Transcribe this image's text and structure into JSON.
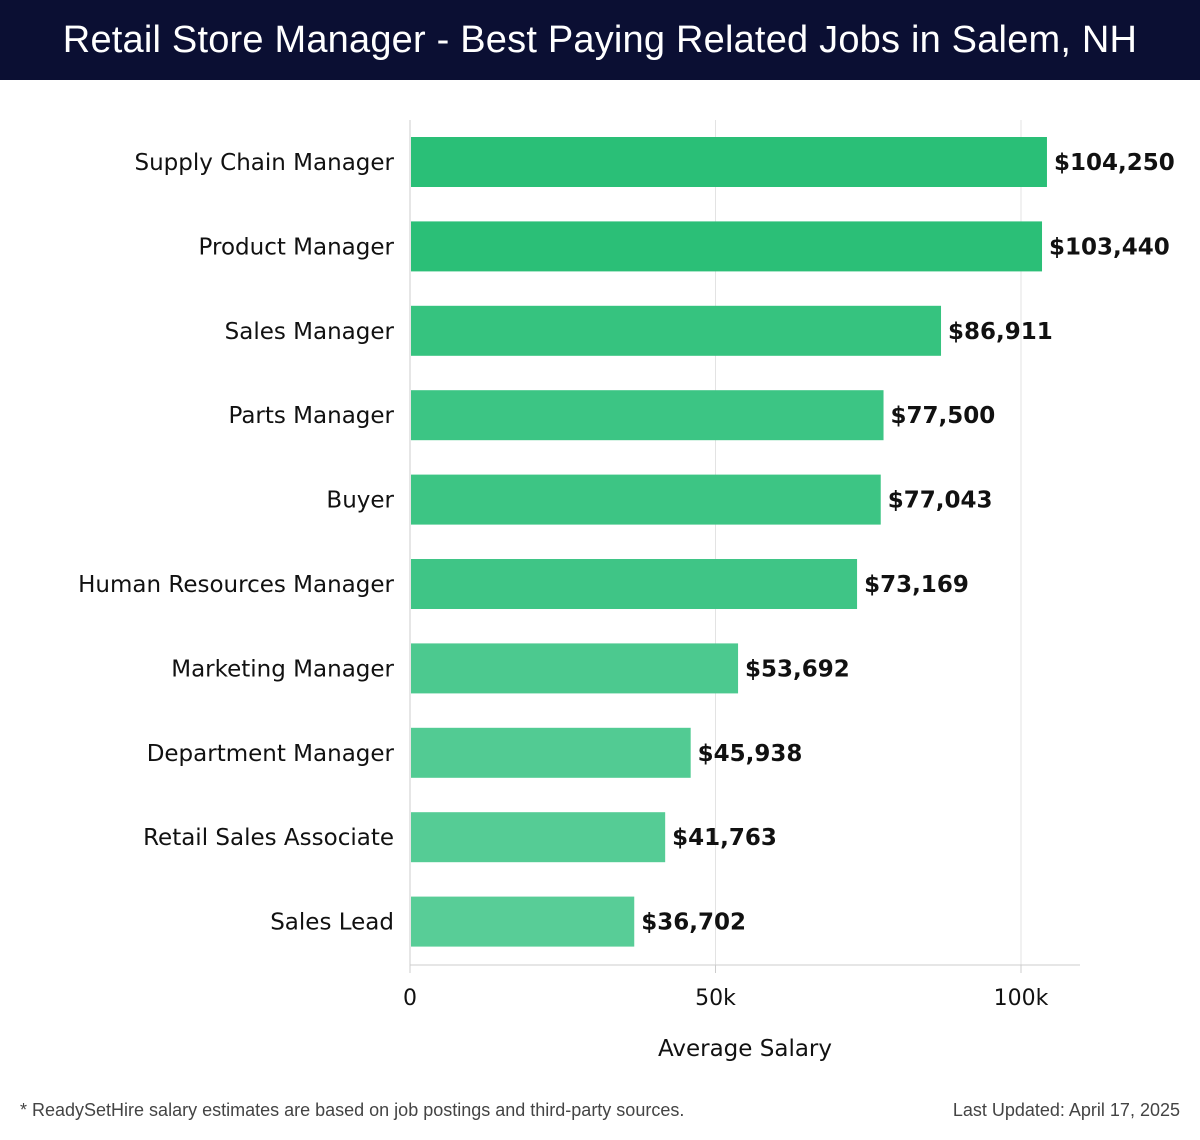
{
  "header": {
    "title": "Retail Store Manager - Best Paying Related Jobs in Salem, NH"
  },
  "chart_data": {
    "type": "bar",
    "orientation": "horizontal",
    "categories": [
      "Supply Chain Manager",
      "Product Manager",
      "Sales Manager",
      "Parts Manager",
      "Buyer",
      "Human Resources Manager",
      "Marketing Manager",
      "Department Manager",
      "Retail Sales Associate",
      "Sales Lead"
    ],
    "values": [
      104250,
      103440,
      86911,
      77500,
      77043,
      73169,
      53692,
      45938,
      41763,
      36702
    ],
    "value_labels": [
      "$104,250",
      "$103,440",
      "$86,911",
      "$77,500",
      "$77,043",
      "$73,169",
      "$53,692",
      "$45,938",
      "$41,763",
      "$36,702"
    ],
    "xlabel": "Average Salary",
    "ylabel": "",
    "xlim": [
      0,
      110000
    ],
    "xticks": [
      0,
      50000,
      100000
    ],
    "xtick_labels": [
      "0",
      "50k",
      "100k"
    ],
    "grid": true,
    "bar_color_max": "#2abf77",
    "bar_color_min": "#58cd97"
  },
  "footer": {
    "note": "* ReadySetHire salary estimates are based on job postings and third-party sources.",
    "updated": "Last Updated: April 17, 2025"
  }
}
